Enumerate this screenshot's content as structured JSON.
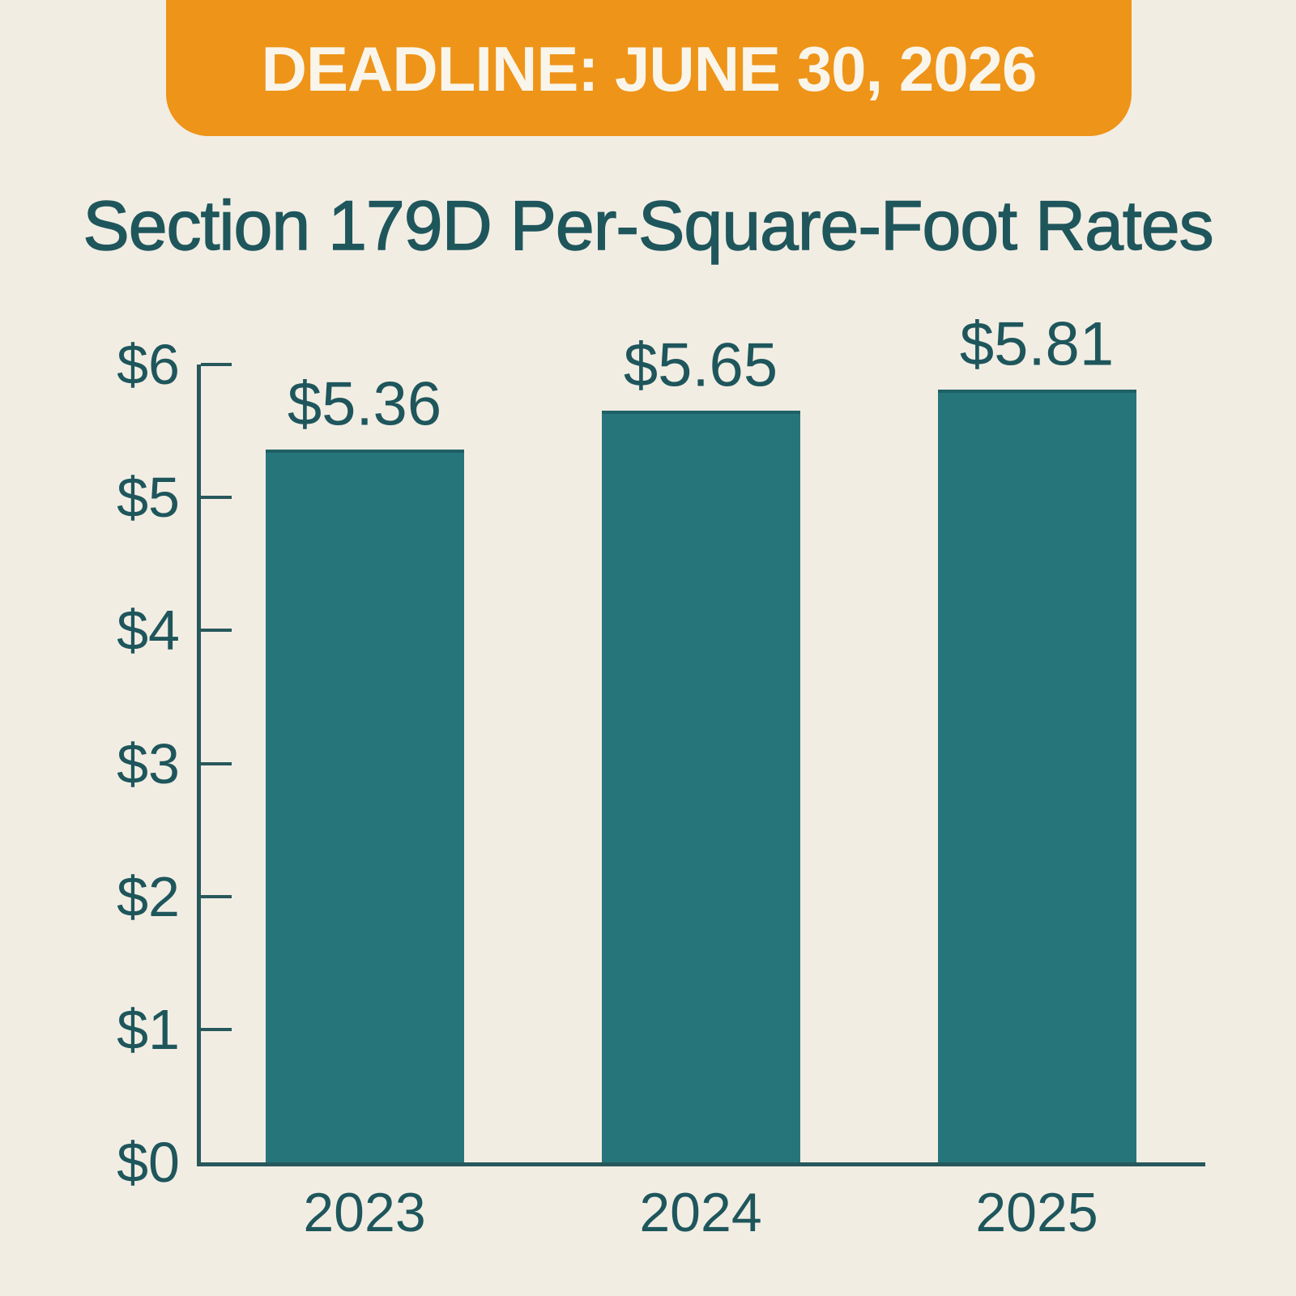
{
  "banner": {
    "label": "DEADLINE: JUNE 30, 2026"
  },
  "title": "Section 179D Per-Square-Foot Rates",
  "colors": {
    "background": "#F2EDE3",
    "banner_bg": "#EE9418",
    "banner_text": "#F9F5EA",
    "bar": "#26757B",
    "text": "#1E565C",
    "axis": "#27585C"
  },
  "chart_data": {
    "type": "bar",
    "title": "Section 179D Per-Square-Foot Rates",
    "categories": [
      "2023",
      "2024",
      "2025"
    ],
    "values": [
      5.36,
      5.65,
      5.81
    ],
    "value_labels": [
      "$5.36",
      "$5.65",
      "$5.81"
    ],
    "y_tick_labels": [
      "$0",
      "$1",
      "$2",
      "$3",
      "$4",
      "$5",
      "$6"
    ],
    "ylim": [
      0,
      6
    ],
    "y_tick_interval": 1,
    "xlabel": "",
    "ylabel": "",
    "grid": false,
    "legend": false,
    "bar_color": "#26757B",
    "annotation": "DEADLINE: JUNE 30, 2026"
  }
}
